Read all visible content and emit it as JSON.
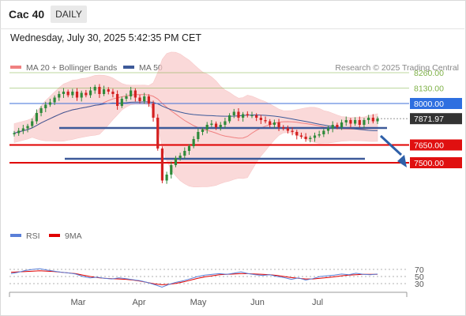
{
  "header": {
    "symbol": "Cac 40",
    "timeframe": "DAILY"
  },
  "datetime": "Wednesday, July 30, 2025 5:42:35 PM CET",
  "credit": "Research © 2025 Trading Central",
  "legend": {
    "ma20": {
      "label": "MA 20 + Bollinger Bands",
      "color": "#f08080"
    },
    "ma50": {
      "label": "MA 50",
      "color": "#3d5a99"
    }
  },
  "rsi_legend": {
    "rsi": {
      "label": "RSI",
      "color": "#5a7fd8"
    },
    "ma9": {
      "label": "9MA",
      "color": "#e00000"
    }
  },
  "price_tags": [
    {
      "label": "8260.00",
      "kind": "text-green"
    },
    {
      "label": "8130.00",
      "kind": "text-green"
    },
    {
      "label": "8000.00",
      "kind": "box-blue"
    },
    {
      "label": "7871.97",
      "kind": "box-dark"
    },
    {
      "label": "7650.00",
      "kind": "box-red"
    },
    {
      "label": "7500.00",
      "kind": "box-red"
    }
  ],
  "x_labels": [
    "Mar",
    "Apr",
    "May",
    "Jun",
    "Jul"
  ],
  "rsi_ticks": [
    "70",
    "50",
    "30"
  ],
  "colors": {
    "up": "#2f8a3a",
    "down": "#d42020",
    "bollinger": "#f9c9c9",
    "support": "#e00000",
    "resistance": "#3d6fd8",
    "target": "#7fb248",
    "channel": "#3d5a99",
    "arrow": "#2e5fa8"
  },
  "chart_data": {
    "type": "candlestick",
    "last_price": 7871.97,
    "levels": {
      "resistance": [
        8000.0,
        8130.0,
        8260.0
      ],
      "support": [
        7650.0,
        7500.0
      ],
      "pivot": 8000.0
    },
    "closes": [
      7750,
      7770,
      7790,
      7810,
      7850,
      7920,
      7960,
      7990,
      8010,
      8050,
      8080,
      8100,
      8070,
      8100,
      8050,
      8090,
      8070,
      8110,
      8140,
      8080,
      8120,
      8100,
      8080,
      7980,
      8040,
      8060,
      8110,
      8050,
      8020,
      8060,
      8000,
      7880,
      7620,
      7350,
      7400,
      7480,
      7540,
      7560,
      7600,
      7640,
      7700,
      7760,
      7780,
      7820,
      7830,
      7800,
      7820,
      7850,
      7900,
      7930,
      7880,
      7910,
      7900,
      7900,
      7880,
      7860,
      7850,
      7820,
      7840,
      7800,
      7790,
      7770,
      7760,
      7730,
      7720,
      7700,
      7710,
      7730,
      7740,
      7770,
      7790,
      7820,
      7800,
      7840,
      7860,
      7830,
      7860,
      7820,
      7860,
      7880,
      7850,
      7872
    ],
    "rsi": {
      "range": [
        0,
        100
      ],
      "levels": [
        70,
        50,
        30
      ],
      "rsi": [
        58,
        62,
        67,
        70,
        72,
        68,
        65,
        62,
        60,
        57,
        50,
        46,
        48,
        45,
        43,
        46,
        44,
        41,
        38,
        33,
        27,
        20,
        28,
        34,
        38,
        44,
        50,
        54,
        56,
        58,
        56,
        59,
        63,
        58,
        55,
        53,
        55,
        50,
        47,
        42,
        46,
        40,
        44,
        50,
        52,
        54,
        57,
        55,
        59,
        56,
        55,
        57
      ],
      "ma9": [
        62,
        63,
        64,
        65,
        66,
        65,
        64,
        62,
        60,
        58,
        54,
        50,
        47,
        45,
        44,
        43,
        42,
        40,
        37,
        33,
        29,
        27,
        28,
        31,
        35,
        40,
        45,
        49,
        52,
        55,
        56,
        57,
        58,
        58,
        57,
        56,
        55,
        53,
        50,
        47,
        45,
        43,
        43,
        45,
        47,
        49,
        52,
        54,
        55,
        56,
        56,
        56
      ]
    }
  }
}
